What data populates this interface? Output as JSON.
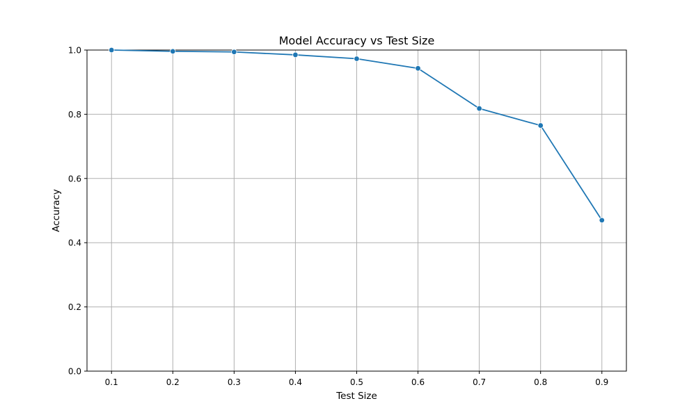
{
  "chart_data": {
    "type": "line",
    "title": "Model Accuracy vs Test Size",
    "xlabel": "Test Size",
    "ylabel": "Accuracy",
    "x": [
      0.1,
      0.2,
      0.3,
      0.4,
      0.5,
      0.6,
      0.7,
      0.8,
      0.9
    ],
    "x_tick_labels": [
      "0.1",
      "0.2",
      "0.3",
      "0.4",
      "0.5",
      "0.6",
      "0.7",
      "0.8",
      "0.9"
    ],
    "series": [
      {
        "values": [
          1.0,
          0.996,
          0.994,
          0.985,
          0.973,
          0.943,
          0.818,
          0.765,
          0.47
        ],
        "color": "#1f77b4",
        "marker": "circle"
      }
    ],
    "xlim": [
      0.06,
      0.94
    ],
    "ylim": [
      0.0,
      1.0
    ],
    "y_ticks": [
      0.0,
      0.2,
      0.4,
      0.6,
      0.8,
      1.0
    ],
    "y_tick_labels": [
      "0.0",
      "0.2",
      "0.4",
      "0.6",
      "0.8",
      "1.0"
    ],
    "grid": true,
    "grid_color": "#b0b0b0",
    "legend": "none"
  }
}
